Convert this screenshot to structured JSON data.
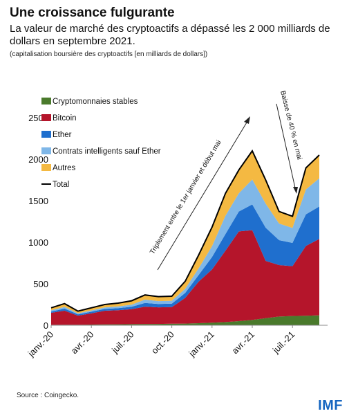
{
  "header": {
    "title": "Une croissance fulgurante",
    "subtitle": "La valeur de marché des cryptoactifs a dépassé les 2 000 milliards de dollars en septembre 2021.",
    "note": "(capitalisation boursière des cryptoactifs [en milliards de dollars])"
  },
  "footer": {
    "source": "Source : Coingecko.",
    "logo": "IMF"
  },
  "chart_data": {
    "type": "area",
    "stacked": true,
    "x_labels": [
      "janv.-20",
      "avr.-20",
      "juil.-20",
      "oct.-20",
      "janv.-21",
      "avr.-21",
      "juil.-21"
    ],
    "y_ticks": [
      0,
      500,
      1000,
      1500,
      2000,
      2500
    ],
    "ylim": [
      0,
      2700
    ],
    "x_dates": [
      "2020-01",
      "2020-02",
      "2020-03",
      "2020-04",
      "2020-05",
      "2020-06",
      "2020-07",
      "2020-08",
      "2020-09",
      "2020-10",
      "2020-11",
      "2020-12",
      "2021-01",
      "2021-02",
      "2021-03",
      "2021-04",
      "2021-05",
      "2021-06",
      "2021-07",
      "2021-08",
      "2021-09"
    ],
    "series": [
      {
        "name": "Cryptomonnaies stables",
        "color": "#4a7a2c",
        "values": [
          5,
          6,
          6,
          8,
          10,
          12,
          13,
          14,
          16,
          18,
          20,
          25,
          32,
          38,
          50,
          65,
          85,
          105,
          112,
          115,
          120
        ]
      },
      {
        "name": "Bitcoin",
        "color": "#b5152b",
        "values": [
          145,
          170,
          110,
          135,
          165,
          170,
          180,
          210,
          200,
          200,
          310,
          500,
          640,
          860,
          1080,
          1080,
          690,
          620,
          600,
          840,
          920
        ]
      },
      {
        "name": "Ether",
        "color": "#1f6fce",
        "values": [
          15,
          25,
          15,
          20,
          22,
          25,
          30,
          45,
          40,
          42,
          60,
          80,
          150,
          200,
          240,
          310,
          400,
          300,
          280,
          380,
          390
        ]
      },
      {
        "name": "Contrats intelligents sauf Ether",
        "color": "#7fb7e8",
        "values": [
          15,
          20,
          12,
          15,
          17,
          20,
          25,
          40,
          35,
          35,
          50,
          80,
          130,
          220,
          220,
          300,
          290,
          200,
          180,
          300,
          340
        ]
      },
      {
        "name": "Autres",
        "color": "#f4b942",
        "values": [
          30,
          40,
          27,
          32,
          36,
          40,
          47,
          56,
          54,
          55,
          90,
          160,
          230,
          270,
          280,
          345,
          285,
          145,
          140,
          260,
          280
        ]
      }
    ],
    "total": {
      "name": "Total",
      "color": "#000000",
      "values": [
        210,
        261,
        170,
        210,
        250,
        267,
        295,
        365,
        345,
        350,
        530,
        845,
        1182,
        1588,
        1870,
        2100,
        1750,
        1370,
        1312,
        1895,
        2050
      ],
      "note": ""
    },
    "legend": "top-left",
    "annotations": [
      {
        "text": "Triplement entre le 1er janvier et début mai"
      },
      {
        "text": "Baisse de 40 % en mai"
      }
    ]
  }
}
